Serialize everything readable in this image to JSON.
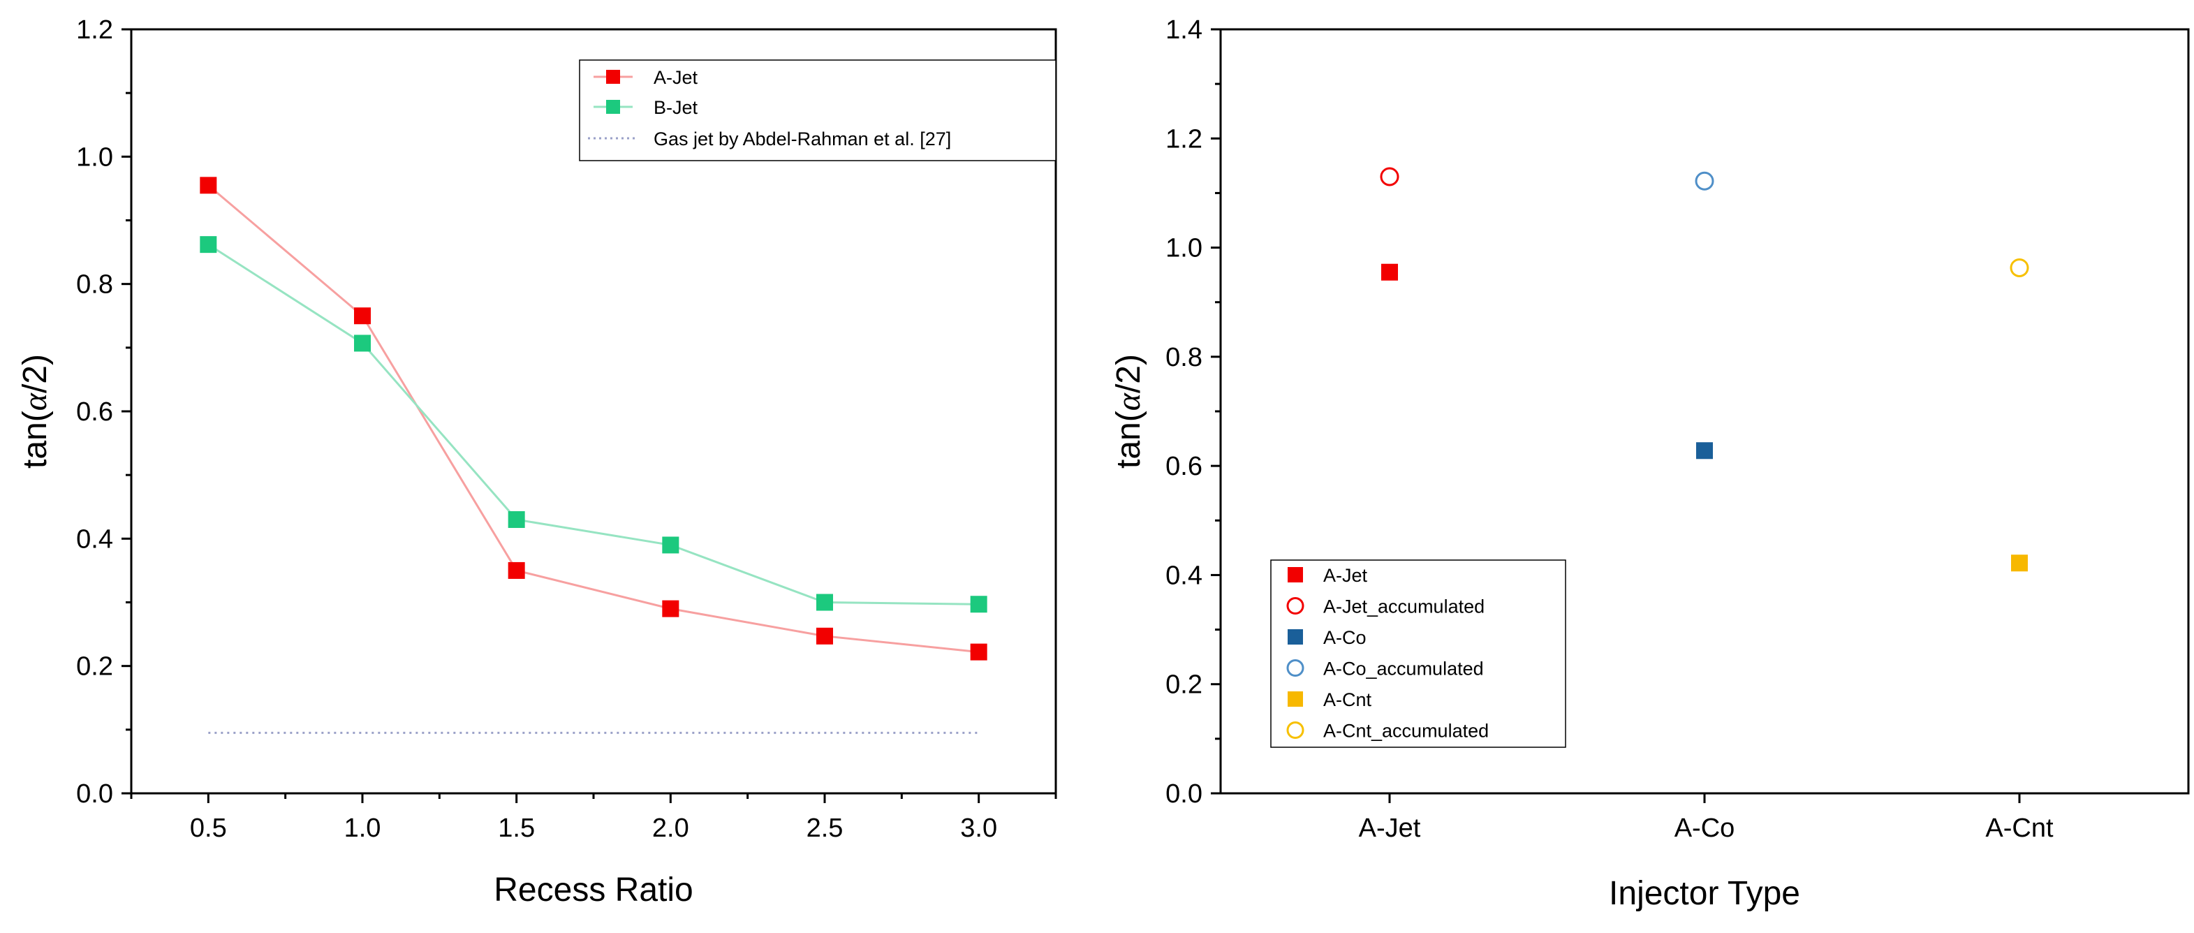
{
  "chart_data": [
    {
      "type": "line",
      "title": "",
      "xlabel": "Recess Ratio",
      "ylabel": "tan(α/2)",
      "ylabel_prefix": "tan(",
      "ylabel_symbol": "α",
      "ylabel_suffix": "/2)",
      "xlim": [
        0.25,
        3.25
      ],
      "ylim": [
        0.0,
        1.2
      ],
      "xticks": [
        "0.5",
        "1.0",
        "1.5",
        "2.0",
        "2.5",
        "3.0"
      ],
      "yticks": [
        "0.0",
        "0.2",
        "0.4",
        "0.6",
        "0.8",
        "1.0",
        "1.2"
      ],
      "grid": false,
      "legend_position": "top-right",
      "x": [
        0.5,
        1.0,
        1.5,
        2.0,
        2.5,
        3.0
      ],
      "series": [
        {
          "name": "A-Jet",
          "values": [
            0.955,
            0.75,
            0.35,
            0.29,
            0.247,
            0.222
          ],
          "color": "#f20000",
          "line_color": "#f7a0a0",
          "marker": "square"
        },
        {
          "name": "B-Jet",
          "values": [
            0.862,
            0.707,
            0.43,
            0.39,
            0.3,
            0.297
          ],
          "color": "#1cc97e",
          "line_color": "#96e4c2",
          "marker": "square"
        }
      ],
      "reference_line": {
        "name": "Gas jet by Abdel-Rahman et al. [27]",
        "y": 0.095,
        "x_range": [
          0.5,
          3.0
        ],
        "color": "#9aa0c8"
      }
    },
    {
      "type": "scatter",
      "title": "",
      "xlabel": "Injector Type",
      "ylabel": "tan(α/2)",
      "ylabel_prefix": "tan(",
      "ylabel_symbol": "α",
      "ylabel_suffix": "/2)",
      "categories": [
        "A-Jet",
        "A-Co",
        "A-Cnt"
      ],
      "ylim": [
        0.0,
        1.4
      ],
      "yticks": [
        "0.0",
        "0.2",
        "0.4",
        "0.6",
        "0.8",
        "1.0",
        "1.2",
        "1.4"
      ],
      "grid": false,
      "legend_position": "bottom-left",
      "series": [
        {
          "name": "A-Jet",
          "category": "A-Jet",
          "value": 0.955,
          "color": "#f20000",
          "marker": "square"
        },
        {
          "name": "A-Jet_accumulated",
          "category": "A-Jet",
          "value": 1.13,
          "color": "#f20000",
          "marker": "circle-open"
        },
        {
          "name": "A-Co",
          "category": "A-Co",
          "value": 0.628,
          "color": "#1a5f99",
          "marker": "square"
        },
        {
          "name": "A-Co_accumulated",
          "category": "A-Co",
          "value": 1.122,
          "color": "#4f8fc8",
          "marker": "circle-open"
        },
        {
          "name": "A-Cnt",
          "category": "A-Cnt",
          "value": 0.422,
          "color": "#f7b800",
          "marker": "square"
        },
        {
          "name": "A-Cnt_accumulated",
          "category": "A-Cnt",
          "value": 0.963,
          "color": "#f7c000",
          "marker": "circle-open"
        }
      ]
    }
  ]
}
